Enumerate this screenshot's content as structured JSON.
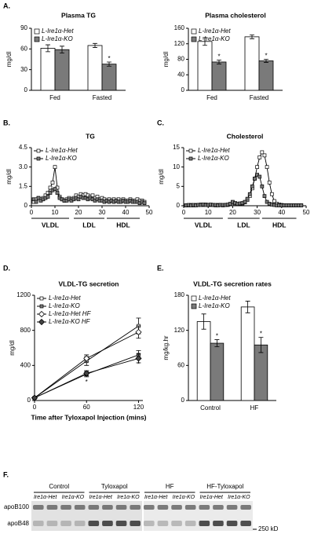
{
  "chart_data": [
    {
      "type": "bar",
      "panel": "A.",
      "title": "Plasma TG",
      "ylabel": "mg/dl",
      "categories": [
        "Fed",
        "Fasted"
      ],
      "ylim": [
        0,
        90
      ],
      "yticks": [
        0,
        30,
        60,
        90
      ],
      "series": [
        {
          "name": "L-Ire1α-Het",
          "color": "#ffffff",
          "values": [
            61,
            65
          ],
          "errors": [
            5,
            3
          ],
          "annotations": [
            null,
            null
          ]
        },
        {
          "name": "L-Ire1α-KO",
          "color": "#7a7a7a",
          "values": [
            59,
            38
          ],
          "errors": [
            5,
            3
          ],
          "annotations": [
            null,
            "*"
          ]
        }
      ]
    },
    {
      "type": "bar",
      "title": "Plasma cholesterol",
      "ylabel": "mg/dl",
      "categories": [
        "Fed",
        "Fasted"
      ],
      "ylim": [
        0,
        160
      ],
      "yticks": [
        0,
        40,
        80,
        120,
        160
      ],
      "series": [
        {
          "name": "L-Ire1α-Het",
          "color": "#ffffff",
          "values": [
            126,
            138
          ],
          "errors": [
            10,
            5
          ],
          "annotations": [
            null,
            null
          ]
        },
        {
          "name": "L-Ire1α-KO",
          "color": "#7a7a7a",
          "values": [
            73,
            76
          ],
          "errors": [
            5,
            4
          ],
          "annotations": [
            "*",
            "*"
          ]
        }
      ]
    },
    {
      "type": "line",
      "panel": "B.",
      "title": "TG",
      "ylabel": "mg/dl",
      "groups": [
        "VLDL",
        "LDL",
        "HDL"
      ],
      "x": [
        1,
        2,
        3,
        4,
        5,
        6,
        7,
        8,
        9,
        10,
        11,
        12,
        13,
        14,
        15,
        16,
        17,
        18,
        19,
        20,
        21,
        22,
        23,
        24,
        25,
        26,
        27,
        28,
        29,
        30,
        31,
        32,
        33,
        34,
        35,
        36,
        37,
        38,
        39,
        40,
        41,
        42,
        43,
        44,
        45,
        46,
        47,
        48
      ],
      "xlim": [
        0,
        50
      ],
      "xticks": [
        0,
        10,
        20,
        30,
        40,
        50
      ],
      "ylim": [
        0,
        4.5
      ],
      "yticks": [
        0,
        1.5,
        {
          "value": 3,
          "label": "3.0"
        },
        4.5
      ],
      "series": [
        {
          "name": "L-Ire1α-Het",
          "color": "#ffffff",
          "marker": "square",
          "values": [
            0.3,
            0.5,
            0.6,
            0.5,
            0.6,
            0.8,
            1.0,
            1.4,
            1.8,
            3.0,
            1.4,
            0.7,
            0.5,
            0.4,
            0.5,
            0.6,
            0.5,
            0.6,
            0.8,
            0.7,
            0.9,
            0.8,
            0.9,
            0.8,
            0.7,
            0.8,
            0.6,
            0.7,
            0.5,
            0.6,
            0.5,
            0.4,
            0.5,
            0.4,
            0.5,
            0.4,
            0.5,
            0.4,
            0.5,
            0.4,
            0.4,
            0.5,
            0.4,
            0.4,
            0.5,
            0.4,
            0.4,
            0.3
          ]
        },
        {
          "name": "L-Ire1α-KO",
          "color": "#7a7a7a",
          "marker": "square",
          "values": [
            0.5,
            0.3,
            0.6,
            0.4,
            0.5,
            0.6,
            0.7,
            1.0,
            1.2,
            1.3,
            1.0,
            0.6,
            0.5,
            0.4,
            0.4,
            0.5,
            0.4,
            0.5,
            0.6,
            0.5,
            0.7,
            0.6,
            0.6,
            0.5,
            0.6,
            0.5,
            0.4,
            0.5,
            0.4,
            0.4,
            0.3,
            0.4,
            0.3,
            0.4,
            0.3,
            0.4,
            0.3,
            0.3,
            0.4,
            0.3,
            0.3,
            0.4,
            0.3,
            0.3,
            0.3,
            0.2,
            0.3,
            0.2
          ]
        }
      ]
    },
    {
      "type": "line",
      "panel": "C.",
      "title": "Cholesterol",
      "ylabel": "mg/dl",
      "groups": [
        "VLDL",
        "LDL",
        "HDL"
      ],
      "x": [
        1,
        2,
        3,
        4,
        5,
        6,
        7,
        8,
        9,
        10,
        11,
        12,
        13,
        14,
        15,
        16,
        17,
        18,
        19,
        20,
        21,
        22,
        23,
        24,
        25,
        26,
        27,
        28,
        29,
        30,
        31,
        32,
        33,
        34,
        35,
        36,
        37,
        38,
        39,
        40,
        41,
        42,
        43,
        44,
        45,
        46,
        47,
        48
      ],
      "xlim": [
        0,
        50
      ],
      "xticks": [
        0,
        10,
        20,
        30,
        40,
        50
      ],
      "ylim": [
        0,
        15
      ],
      "yticks": [
        0,
        5,
        10,
        15
      ],
      "series": [
        {
          "name": "L-Ire1α-Het",
          "color": "#ffffff",
          "marker": "square",
          "values": [
            0.1,
            0.1,
            0.2,
            0.1,
            0.2,
            0.2,
            0.3,
            0.2,
            0.3,
            0.2,
            0.2,
            0.2,
            0.1,
            0.2,
            0.2,
            0.1,
            0.2,
            0.2,
            0.4,
            0.8,
            0.5,
            0.4,
            0.5,
            0.6,
            0.9,
            1.5,
            2.5,
            4.5,
            7,
            10,
            12.5,
            13.8,
            13,
            10,
            6,
            3,
            1.2,
            0.5,
            0.3,
            0.2,
            0.1,
            0.1,
            0.1,
            0.1,
            0.1,
            0.1,
            0.1,
            0.1
          ]
        },
        {
          "name": "L-Ire1α-KO",
          "color": "#7a7a7a",
          "marker": "square",
          "values": [
            0.1,
            0.2,
            0.1,
            0.2,
            0.1,
            0.2,
            0.2,
            0.3,
            0.2,
            0.2,
            0.3,
            0.2,
            0.2,
            0.1,
            0.2,
            0.2,
            0.2,
            0.3,
            0.5,
            1.0,
            0.7,
            0.5,
            0.6,
            0.7,
            1.0,
            1.8,
            3,
            5,
            7,
            8,
            7.5,
            5,
            2.5,
            1,
            0.5,
            0.3,
            0.2,
            0.1,
            0.1,
            0.1,
            0.1,
            0.1,
            0.1,
            0.1,
            0.1,
            0.1,
            0.1,
            0.1
          ]
        }
      ]
    },
    {
      "type": "line",
      "panel": "D.",
      "title": "VLDL-TG secretion",
      "ylabel": "mg/dl",
      "xlabel": "Time after Tyloxapol Injection (mins)",
      "x": [
        0,
        60,
        120
      ],
      "xlim": [
        0,
        125
      ],
      "xticks": [
        0,
        60,
        120
      ],
      "ylim": [
        0,
        1200
      ],
      "yticks": [
        0,
        400,
        800,
        1200
      ],
      "series": [
        {
          "name": "L-Ire1α-Het",
          "color": "#ffffff",
          "marker": "square",
          "values": [
            30,
            450,
            850
          ],
          "errors": [
            10,
            50,
            90
          ]
        },
        {
          "name": "L-Ire1α-KO",
          "color": "#7a7a7a",
          "marker": "square",
          "values": [
            30,
            300,
            520
          ],
          "errors": [
            10,
            30,
            50
          ],
          "annotations": [
            null,
            "*",
            "*"
          ]
        },
        {
          "name": "L-Ire1α-Het HF",
          "color": "#ffffff",
          "marker": "diamond",
          "values": [
            30,
            480,
            780
          ],
          "errors": [
            10,
            40,
            70
          ]
        },
        {
          "name": "L-Ire1α-KO HF",
          "color": "#444444",
          "marker": "diamond",
          "values": [
            30,
            310,
            480
          ],
          "errors": [
            10,
            30,
            50
          ]
        }
      ]
    },
    {
      "type": "bar",
      "panel": "E.",
      "title": "VLDL-TG secretion rates",
      "ylabel": "mg/kg.hr",
      "categories": [
        "Control",
        "HF"
      ],
      "ylim": [
        0,
        180
      ],
      "yticks": [
        0,
        60,
        120,
        180
      ],
      "series": [
        {
          "name": "L-Ire1α-Het",
          "color": "#ffffff",
          "values": [
            135,
            160
          ],
          "errors": [
            13,
            10
          ],
          "annotations": [
            null,
            null
          ]
        },
        {
          "name": "L-Ire1α-KO",
          "color": "#7a7a7a",
          "values": [
            98,
            95
          ],
          "errors": [
            6,
            13
          ],
          "annotations": [
            "*",
            "*"
          ]
        }
      ]
    }
  ],
  "blot": {
    "panel": "F.",
    "groups": [
      "Control",
      "Tyloxapol",
      "HF",
      "HF-Tyloxapol"
    ],
    "lanes": [
      "Ire1α-Het",
      "Ire1α-KO",
      "Ire1α-Het",
      "Ire1α-KO",
      "Ire1α-Het",
      "Ire1α-KO",
      "Ire1α-Het",
      "Ire1α-KO"
    ],
    "bands": [
      "apoB100",
      "apoB48"
    ],
    "marker": "250 kD"
  }
}
